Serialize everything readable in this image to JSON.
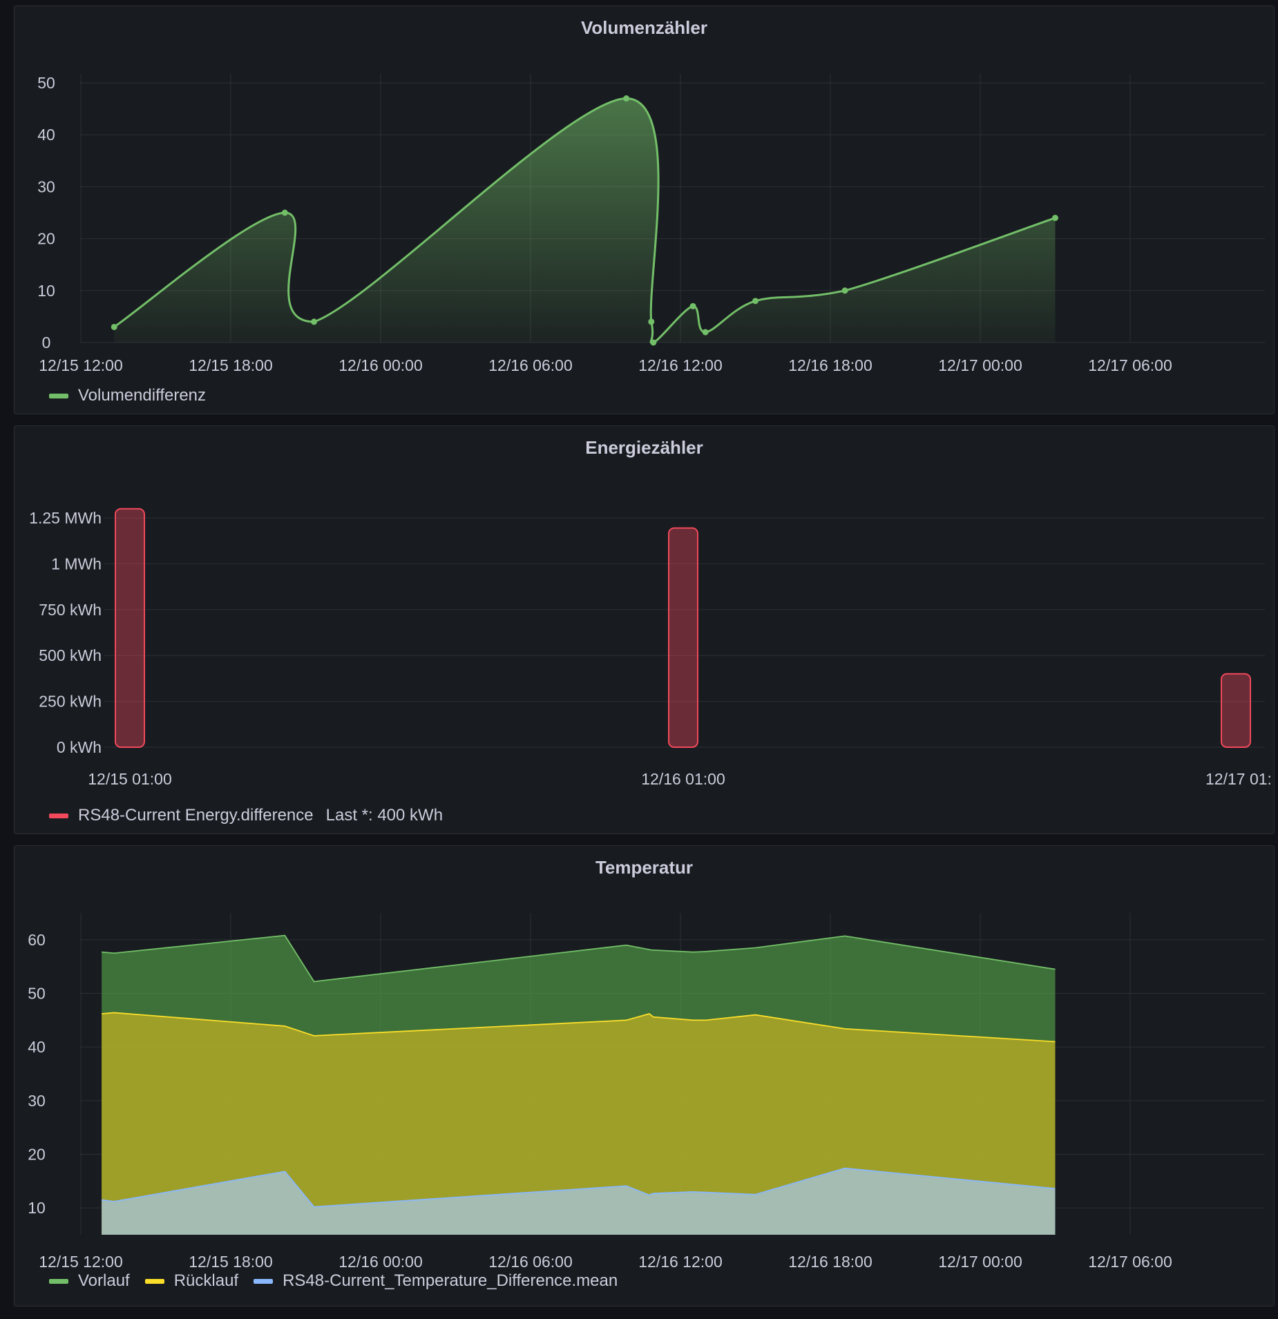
{
  "colors": {
    "green": "#73bf69",
    "yellow": "#fade2a",
    "blue": "#8ab8ff",
    "red": "#f2495c"
  },
  "chart_data": [
    {
      "id": "volume",
      "type": "line",
      "title": "Volumenzähler",
      "x_type": "time",
      "x_ticks": [
        "12/15 12:00",
        "12/15 18:00",
        "12/16 00:00",
        "12/16 06:00",
        "12/16 12:00",
        "12/16 18:00",
        "12/17 00:00",
        "12/17 06:00"
      ],
      "y_ticks": [
        "0",
        "10",
        "20",
        "30",
        "40",
        "50"
      ],
      "ylim": [
        0,
        50
      ],
      "grid": true,
      "legend_placement": "bottom-left",
      "series": [
        {
          "name": "Volumendifferenz",
          "color": "#73bf69",
          "x": [
            "12/15 13:20",
            "12/15 20:10",
            "12/15 21:20",
            "12/16 09:50",
            "12/16 10:50",
            "12/16 10:55",
            "12/16 12:30",
            "12/16 13:00",
            "12/16 15:00",
            "12/16 18:35",
            "12/17 03:00"
          ],
          "y": [
            3,
            25,
            4,
            47,
            4,
            0,
            7,
            2,
            8,
            10,
            24
          ]
        }
      ]
    },
    {
      "id": "energy",
      "type": "bar",
      "title": "Energiezähler",
      "categories": [
        "12/15 01:00",
        "12/16 01:00",
        "12/17 01:"
      ],
      "y_ticks": [
        "0 kWh",
        "250 kWh",
        "500 kWh",
        "750 kWh",
        "1 MWh",
        "1.25 MWh"
      ],
      "ylim": [
        0,
        1250
      ],
      "unit": "kWh",
      "grid": true,
      "legend_placement": "bottom-left",
      "series": [
        {
          "name": "RS48-Current Energy.difference",
          "color": "#f2495c",
          "values": [
            1300,
            1195,
            400
          ],
          "legend_stat": "Last *: 400 kWh"
        }
      ]
    },
    {
      "id": "temperature",
      "type": "area",
      "title": "Temperatur",
      "x_type": "time",
      "x_ticks": [
        "12/15 12:00",
        "12/15 18:00",
        "12/16 00:00",
        "12/16 06:00",
        "12/16 12:00",
        "12/16 18:00",
        "12/17 00:00",
        "12/17 06:00"
      ],
      "y_ticks": [
        "10",
        "20",
        "30",
        "40",
        "50",
        "60"
      ],
      "ylim": [
        5,
        65
      ],
      "grid": true,
      "legend_placement": "bottom-left",
      "series": [
        {
          "name": "Vorlauf",
          "color": "#73bf69",
          "x": [
            "12/15 12:50",
            "12/15 13:20",
            "12/15 20:10",
            "12/15 21:20",
            "12/16 09:50",
            "12/16 10:50",
            "12/16 12:30",
            "12/16 13:00",
            "12/16 15:00",
            "12/16 18:35",
            "12/17 03:00"
          ],
          "y": [
            57.7,
            57.5,
            60.8,
            52.2,
            59,
            58.1,
            57.7,
            57.8,
            58.5,
            60.7,
            54.5
          ]
        },
        {
          "name": "Rücklauf",
          "color": "#fade2a",
          "x": [
            "12/15 12:50",
            "12/15 13:20",
            "12/15 20:10",
            "12/15 21:20",
            "12/16 09:50",
            "12/16 10:45",
            "12/16 10:55",
            "12/16 12:30",
            "12/16 13:00",
            "12/16 15:00",
            "12/16 18:35",
            "12/17 03:00"
          ],
          "y": [
            46.2,
            46.4,
            43.9,
            42.1,
            45,
            46.2,
            45.6,
            45,
            45,
            46,
            43.4,
            41
          ]
        },
        {
          "name": "RS48-Current_Temperature_Difference.mean",
          "color": "#8ab8ff",
          "x": [
            "12/15 12:50",
            "12/15 13:20",
            "12/15 20:10",
            "12/15 21:20",
            "12/16 09:50",
            "12/16 10:45",
            "12/16 10:55",
            "12/16 12:30",
            "12/16 15:00",
            "12/16 18:35",
            "12/17 03:00"
          ],
          "y": [
            11.5,
            11.2,
            16.8,
            10.2,
            14.1,
            12.4,
            12.7,
            13,
            12.5,
            17.4,
            13.6
          ]
        }
      ]
    }
  ]
}
